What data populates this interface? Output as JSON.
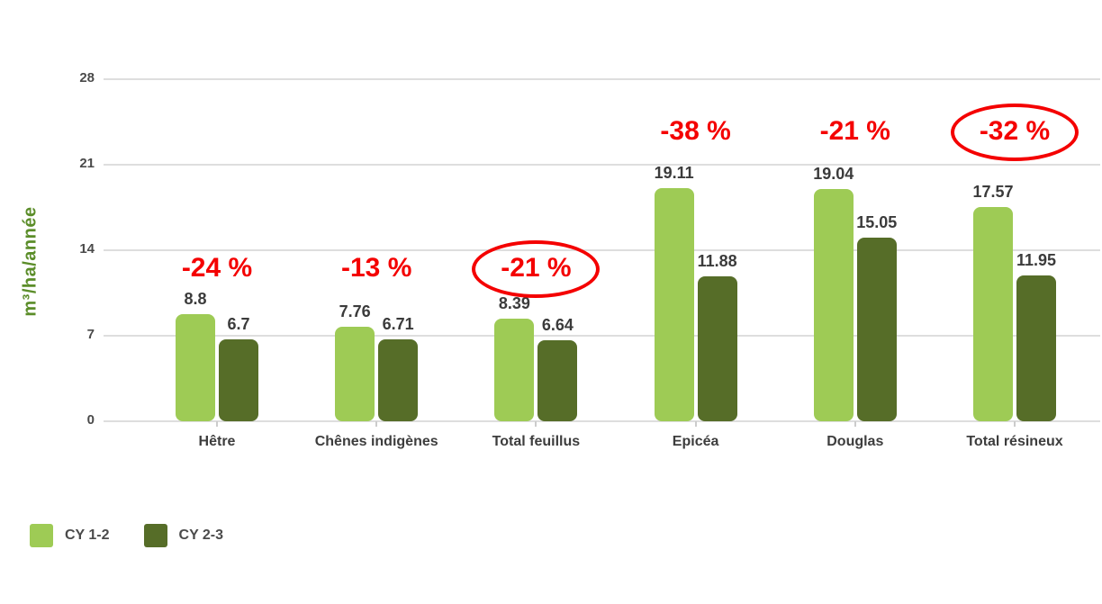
{
  "colors": {
    "series_light": "#9ecb55",
    "series_dark": "#566d28",
    "annotation_red": "#f40000",
    "grid": "#dedede",
    "value_text": "#3b3b3b",
    "axis_title_green": "#5b8d29"
  },
  "chart_data": {
    "type": "bar",
    "title": "",
    "xlabel": "",
    "ylabel": "m³/ha/année",
    "ylim": [
      0,
      28
    ],
    "yticks": [
      0,
      7,
      14,
      21,
      28
    ],
    "grid": true,
    "legend_position": "bottom-left",
    "categories": [
      "Hêtre",
      "Chênes indigènes",
      "Total feuillus",
      "Epicéa",
      "Douglas",
      "Total résineux"
    ],
    "series": [
      {
        "name": "CY 1-2",
        "color": "#9ecb55",
        "values": [
          8.8,
          7.76,
          8.39,
          19.11,
          19.04,
          17.57
        ]
      },
      {
        "name": "CY 2-3",
        "color": "#566d28",
        "values": [
          6.7,
          6.71,
          6.64,
          11.88,
          15.05,
          11.95
        ]
      }
    ],
    "annotations": [
      {
        "text": "-24 %",
        "category": "Hêtre",
        "circled": false,
        "row": "lower"
      },
      {
        "text": "-13 %",
        "category": "Chênes indigènes",
        "circled": false,
        "row": "lower"
      },
      {
        "text": "-21 %",
        "category": "Total feuillus",
        "circled": true,
        "row": "lower"
      },
      {
        "text": "-38 %",
        "category": "Epicéa",
        "circled": false,
        "row": "upper"
      },
      {
        "text": "-21 %",
        "category": "Douglas",
        "circled": false,
        "row": "upper"
      },
      {
        "text": "-32 %",
        "category": "Total résineux",
        "circled": true,
        "row": "upper"
      }
    ]
  },
  "legend": {
    "items": [
      {
        "label": "CY 1-2"
      },
      {
        "label": "CY 2-3"
      }
    ]
  }
}
